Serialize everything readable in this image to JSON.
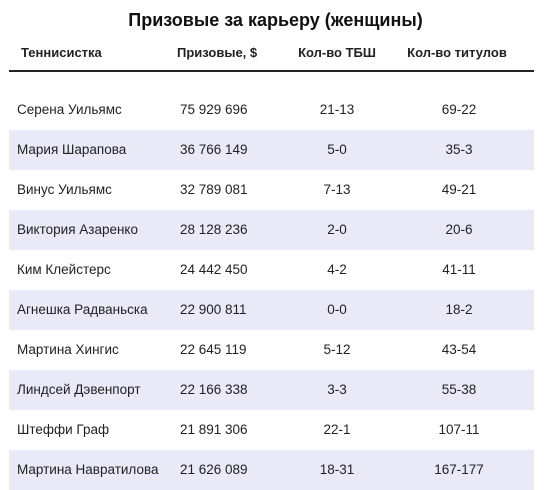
{
  "title": "Призовые за карьеру (женщины)",
  "columns": {
    "name": "Теннисистка",
    "prize": "Призовые, $",
    "slams": "Кол-во ТБШ",
    "titles": "Кол-во титулов"
  },
  "rows": [
    {
      "name": "Серена Уильямс",
      "prize": "75 929 696",
      "slams": "21-13",
      "titles": "69-22"
    },
    {
      "name": "Мария Шарапова",
      "prize": "36 766 149",
      "slams": "5-0",
      "titles": "35-3"
    },
    {
      "name": "Винус Уильямс",
      "prize": "32 789 081",
      "slams": "7-13",
      "titles": "49-21"
    },
    {
      "name": "Виктория Азаренко",
      "prize": "28 128 236",
      "slams": "2-0",
      "titles": "20-6"
    },
    {
      "name": "Ким Клейстерс",
      "prize": "24 442 450",
      "slams": "4-2",
      "titles": "41-11"
    },
    {
      "name": "Агнешка Радваньска",
      "prize": "22 900 811",
      "slams": "0-0",
      "titles": "18-2"
    },
    {
      "name": "Мартина Хингис",
      "prize": "22 645 119",
      "slams": "5-12",
      "titles": "43-54"
    },
    {
      "name": "Линдсей Дэвенпорт",
      "prize": "22 166 338",
      "slams": "3-3",
      "titles": "55-38"
    },
    {
      "name": "Штеффи Граф",
      "prize": "21 891 306",
      "slams": "22-1",
      "titles": "107-11"
    },
    {
      "name": "Мартина Навратилова",
      "prize": "21 626 089",
      "slams": "18-31",
      "titles": "167-177"
    }
  ],
  "colors": {
    "stripe": "#e9e9f7",
    "header_rule": "#222222"
  }
}
